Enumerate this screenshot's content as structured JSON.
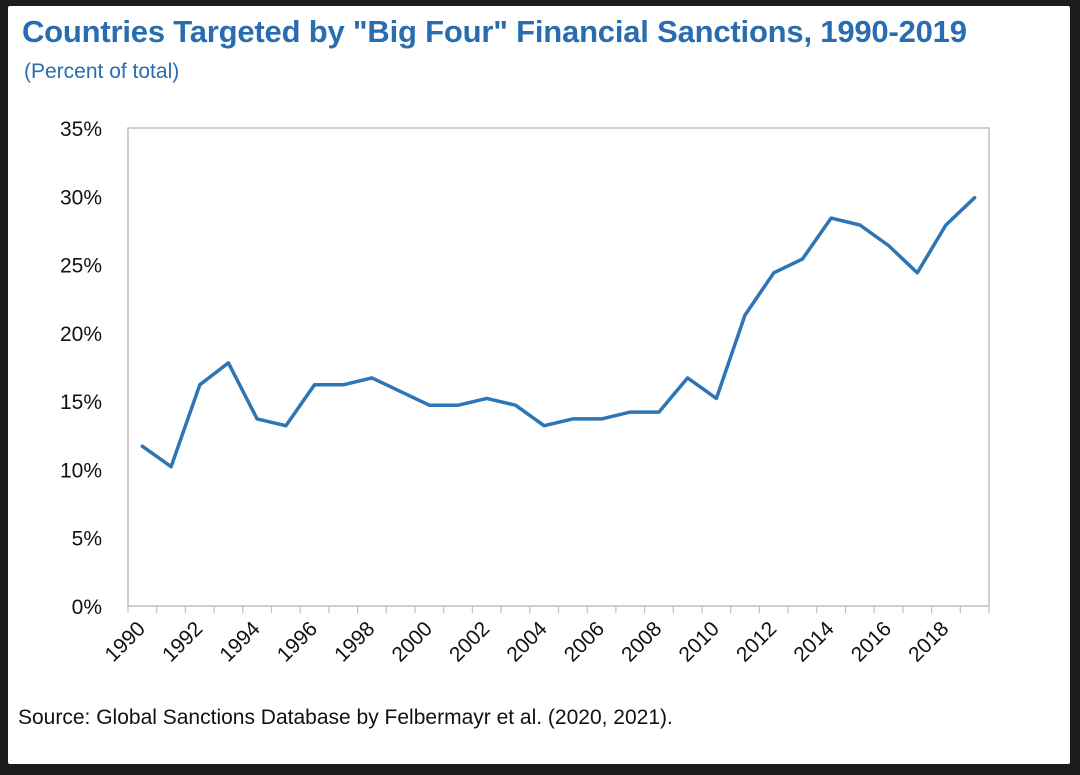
{
  "chart_data": {
    "type": "line",
    "title": "Countries Targeted by \"Big Four\" Financial Sanctions, 1990-2019",
    "subtitle": "(Percent of total)",
    "source": "Source: Global Sanctions Database by Felbermayr et al. (2020, 2021).",
    "xlabel": "",
    "ylabel": "",
    "x": [
      1990,
      1991,
      1992,
      1993,
      1994,
      1995,
      1996,
      1997,
      1998,
      1999,
      2000,
      2001,
      2002,
      2003,
      2004,
      2005,
      2006,
      2007,
      2008,
      2009,
      2010,
      2011,
      2012,
      2013,
      2014,
      2015,
      2016,
      2017,
      2018,
      2019
    ],
    "series": [
      {
        "values": [
          11.7,
          10.2,
          16.2,
          17.8,
          13.7,
          13.2,
          16.2,
          16.2,
          16.7,
          15.7,
          14.7,
          14.7,
          15.2,
          14.7,
          13.2,
          13.7,
          13.7,
          14.2,
          14.2,
          16.7,
          15.2,
          21.3,
          24.4,
          25.4,
          28.4,
          27.9,
          26.4,
          24.4,
          27.9,
          29.9
        ],
        "color": "#2e75b6"
      }
    ],
    "xticks": [
      "1990",
      "1992",
      "1994",
      "1996",
      "1998",
      "2000",
      "2002",
      "2004",
      "2006",
      "2008",
      "2010",
      "2012",
      "2014",
      "2016",
      "2018"
    ],
    "yticks": [
      "0%",
      "5%",
      "10%",
      "15%",
      "20%",
      "25%",
      "30%",
      "35%"
    ],
    "ylim": [
      0,
      35
    ],
    "grid": false,
    "legend": "none"
  },
  "colors": {
    "title": "#2a6cb0",
    "line": "#2e75b6",
    "axis": "#bfbfbf"
  }
}
